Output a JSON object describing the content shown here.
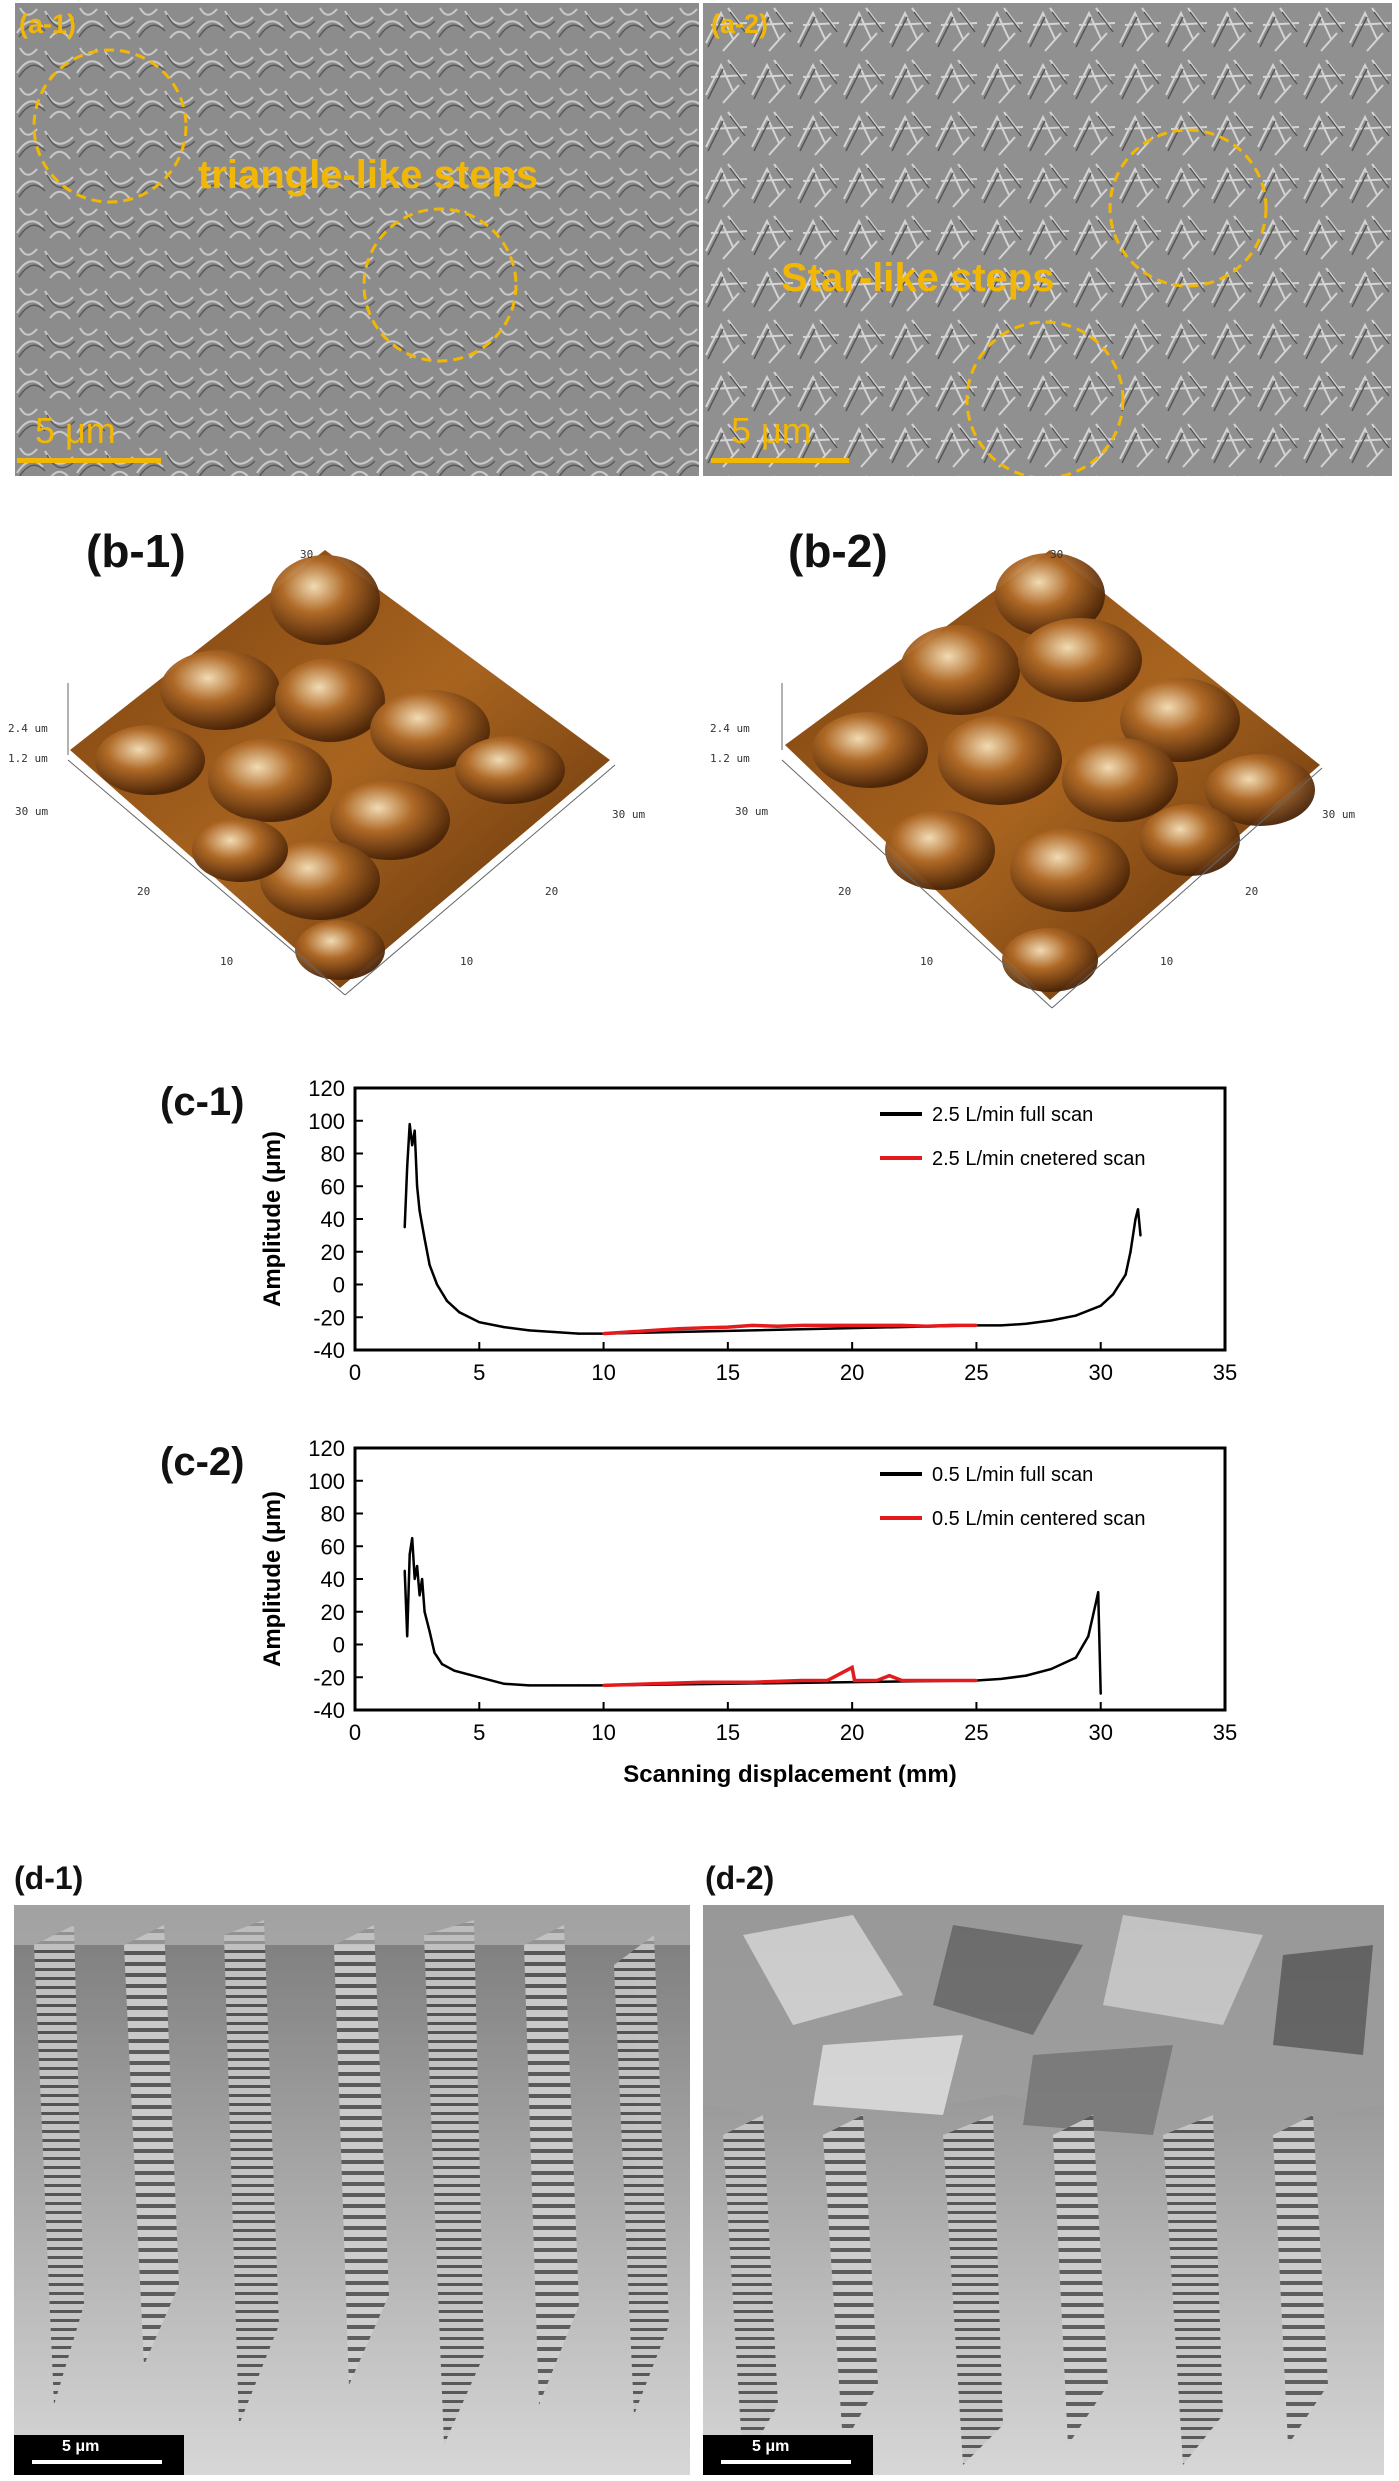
{
  "colors": {
    "annotation": "#F2B705",
    "sem_bg": "#8a8a8a",
    "afm_dark": "#3a1c05",
    "afm_mid": "#9a5a1f",
    "afm_light": "#f3dcb5",
    "series_full": "#000000",
    "series_centered": "#e41a1c"
  },
  "panel_a1": {
    "label": "(a-1)",
    "annotation": "triangle-like steps",
    "scalebar": "5 μm"
  },
  "panel_a2": {
    "label": "(a-2)",
    "annotation": "Star-like steps",
    "scalebar": "5 μm"
  },
  "panel_b1": {
    "label": "(b-1)",
    "z_ticks": [
      "2.4 um",
      "1.2 um"
    ],
    "left_axis_end": "30 um",
    "left_axis_ticks": [
      "20",
      "10"
    ],
    "right_axis_end": "30 um",
    "right_axis_ticks": [
      "20",
      "10"
    ],
    "top_tick": "30"
  },
  "panel_b2": {
    "label": "(b-2)",
    "z_ticks": [
      "2.4 um",
      "1.2 um"
    ],
    "left_axis_end": "30 um",
    "left_axis_ticks": [
      "20",
      "10"
    ],
    "right_axis_end": "30 um",
    "right_axis_ticks": [
      "20",
      "10"
    ],
    "top_tick": "30"
  },
  "panel_c": {
    "label_1": "(c-1)",
    "label_2": "(c-2)"
  },
  "panel_d1": {
    "label": "(d-1)",
    "scalebar": "5 μm"
  },
  "panel_d2": {
    "label": "(d-2)",
    "scalebar": "5 μm"
  },
  "chart_data": [
    {
      "type": "line",
      "xlabel": "",
      "ylabel": "Amplitude (μm)",
      "xlim": [
        0,
        35
      ],
      "ylim": [
        -40,
        120
      ],
      "xticks": [
        0,
        5,
        10,
        15,
        20,
        25,
        30,
        35
      ],
      "yticks": [
        -40,
        -20,
        0,
        20,
        40,
        60,
        80,
        100,
        120
      ],
      "legend": "top-right",
      "series": [
        {
          "name": "2.5 L/min full scan",
          "color": "#000000",
          "points": [
            [
              2.0,
              35
            ],
            [
              2.1,
              72
            ],
            [
              2.2,
              98
            ],
            [
              2.3,
              85
            ],
            [
              2.4,
              94
            ],
            [
              2.5,
              60
            ],
            [
              2.6,
              45
            ],
            [
              2.8,
              28
            ],
            [
              3.0,
              12
            ],
            [
              3.3,
              0
            ],
            [
              3.7,
              -10
            ],
            [
              4.2,
              -17
            ],
            [
              5.0,
              -23
            ],
            [
              6.0,
              -26
            ],
            [
              7.0,
              -28
            ],
            [
              8.0,
              -29
            ],
            [
              9.0,
              -30
            ],
            [
              10.0,
              -30
            ],
            [
              25.0,
              -25
            ],
            [
              26.0,
              -25
            ],
            [
              27.0,
              -24
            ],
            [
              28.0,
              -22
            ],
            [
              29.0,
              -19
            ],
            [
              30.0,
              -13
            ],
            [
              30.5,
              -6
            ],
            [
              31.0,
              6
            ],
            [
              31.2,
              20
            ],
            [
              31.4,
              40
            ],
            [
              31.5,
              46
            ],
            [
              31.6,
              30
            ]
          ]
        },
        {
          "name": "2.5 L/min cnetered scan",
          "color": "#e41a1c",
          "points": [
            [
              10,
              -30
            ],
            [
              11,
              -29
            ],
            [
              12,
              -28
            ],
            [
              13,
              -27
            ],
            [
              14,
              -26.5
            ],
            [
              15,
              -26
            ],
            [
              16,
              -25
            ],
            [
              17,
              -25.5
            ],
            [
              18,
              -25
            ],
            [
              19,
              -25
            ],
            [
              20,
              -25
            ],
            [
              21,
              -25
            ],
            [
              22,
              -25
            ],
            [
              23,
              -25.5
            ],
            [
              24,
              -25
            ],
            [
              25,
              -25
            ]
          ]
        }
      ]
    },
    {
      "type": "line",
      "xlabel": "Scanning displacement (mm)",
      "ylabel": "Amplitude (μm)",
      "xlim": [
        0,
        35
      ],
      "ylim": [
        -40,
        120
      ],
      "xticks": [
        0,
        5,
        10,
        15,
        20,
        25,
        30,
        35
      ],
      "yticks": [
        -40,
        -20,
        0,
        20,
        40,
        60,
        80,
        100,
        120
      ],
      "legend": "top-right",
      "series": [
        {
          "name": "0.5 L/min full scan",
          "color": "#000000",
          "points": [
            [
              2.0,
              45
            ],
            [
              2.1,
              5
            ],
            [
              2.2,
              55
            ],
            [
              2.3,
              65
            ],
            [
              2.4,
              40
            ],
            [
              2.5,
              48
            ],
            [
              2.6,
              30
            ],
            [
              2.7,
              40
            ],
            [
              2.8,
              20
            ],
            [
              3.0,
              8
            ],
            [
              3.2,
              -5
            ],
            [
              3.5,
              -12
            ],
            [
              4.0,
              -16
            ],
            [
              5.0,
              -20
            ],
            [
              6.0,
              -24
            ],
            [
              7.0,
              -25
            ],
            [
              8.0,
              -25
            ],
            [
              9.0,
              -25
            ],
            [
              10.0,
              -25
            ],
            [
              25.0,
              -22
            ],
            [
              26.0,
              -21
            ],
            [
              27.0,
              -19
            ],
            [
              28.0,
              -15
            ],
            [
              29.0,
              -8
            ],
            [
              29.5,
              5
            ],
            [
              29.8,
              25
            ],
            [
              29.9,
              32
            ],
            [
              30.0,
              -30
            ]
          ]
        },
        {
          "name": "0.5 L/min centered scan",
          "color": "#e41a1c",
          "points": [
            [
              10,
              -25
            ],
            [
              12,
              -24
            ],
            [
              14,
              -23
            ],
            [
              16,
              -23
            ],
            [
              18,
              -22
            ],
            [
              19,
              -22
            ],
            [
              20,
              -14
            ],
            [
              20.1,
              -22
            ],
            [
              21,
              -22
            ],
            [
              21.5,
              -19
            ],
            [
              22,
              -22
            ],
            [
              23,
              -22
            ],
            [
              24,
              -22
            ],
            [
              25,
              -22
            ]
          ]
        }
      ]
    }
  ]
}
